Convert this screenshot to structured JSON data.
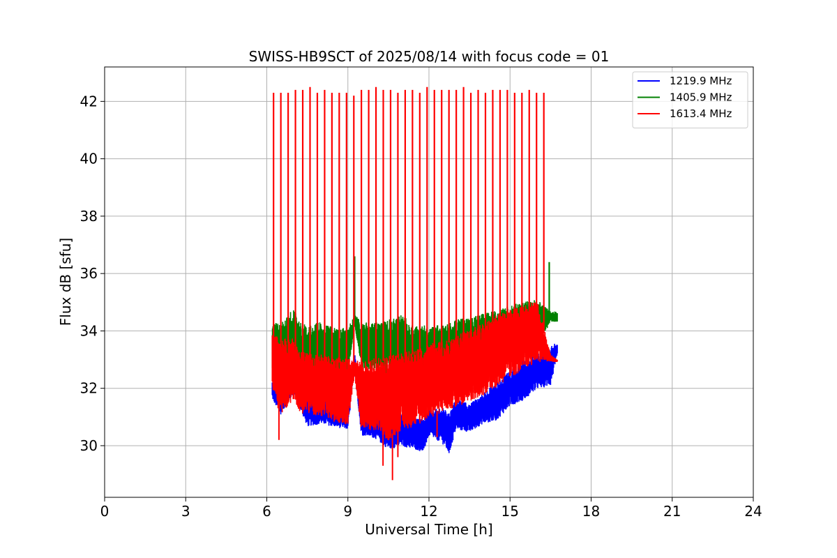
{
  "chart_data": {
    "type": "line",
    "title": "SWISS-HB9SCT of 2025/08/14 with focus code = 01",
    "xlabel": "Universal Time [h]",
    "ylabel": "Flux dB [sfu]",
    "xlim": [
      0,
      24
    ],
    "ylim": [
      28.2,
      43.2
    ],
    "xticks": [
      0,
      3,
      6,
      9,
      12,
      15,
      18,
      21,
      24
    ],
    "yticks": [
      30,
      32,
      34,
      36,
      38,
      40,
      42
    ],
    "grid": true,
    "legend_position": "top-right",
    "series": [
      {
        "name": "1219.9 MHz",
        "color": "#0000ff",
        "x": [
          6.2,
          6.5,
          7.0,
          7.25,
          7.5,
          8.0,
          8.5,
          9.0,
          9.25,
          9.5,
          10.0,
          10.5,
          11.0,
          11.5,
          11.8,
          12.0,
          12.5,
          12.75,
          13.0,
          13.5,
          14.0,
          14.5,
          15.0,
          15.5,
          16.0,
          16.5,
          16.75
        ],
        "low": [
          31.6,
          31.0,
          31.8,
          31.2,
          30.6,
          30.7,
          30.6,
          30.5,
          32.6,
          30.3,
          30.2,
          29.8,
          29.9,
          29.8,
          29.7,
          30.3,
          30.0,
          29.6,
          30.5,
          30.4,
          30.7,
          30.8,
          31.3,
          31.5,
          31.9,
          32.0,
          33.1
        ],
        "high": [
          32.3,
          32.1,
          32.5,
          32.0,
          31.8,
          31.8,
          31.6,
          31.6,
          33.3,
          31.5,
          31.3,
          31.2,
          31.3,
          31.0,
          31.0,
          31.3,
          31.4,
          31.2,
          31.7,
          31.5,
          31.9,
          32.3,
          32.7,
          33.1,
          33.3,
          33.6,
          33.6
        ]
      },
      {
        "name": "1405.9 MHz",
        "color": "#008000",
        "x": [
          6.2,
          6.5,
          7.0,
          7.25,
          7.5,
          8.0,
          8.5,
          9.0,
          9.25,
          9.5,
          10.0,
          10.5,
          11.0,
          11.5,
          12.0,
          12.5,
          13.0,
          13.5,
          14.0,
          14.5,
          15.0,
          15.5,
          16.0,
          16.5,
          16.75
        ],
        "low": [
          32.6,
          32.4,
          32.6,
          32.0,
          32.4,
          32.5,
          32.4,
          32.3,
          34.2,
          32.6,
          32.5,
          32.3,
          32.2,
          32.0,
          32.2,
          32.3,
          32.4,
          32.7,
          32.8,
          33.0,
          33.1,
          33.2,
          33.3,
          34.3,
          34.3
        ],
        "high": [
          34.4,
          34.4,
          34.9,
          34.4,
          34.3,
          34.4,
          34.2,
          34.2,
          34.6,
          34.4,
          34.4,
          34.5,
          34.7,
          34.3,
          34.3,
          34.3,
          34.5,
          34.6,
          34.7,
          34.8,
          35.0,
          35.1,
          35.2,
          34.7,
          34.7
        ],
        "spikes": [
          {
            "x": 9.25,
            "y": 36.6
          },
          {
            "x": 15.65,
            "y": 34.8
          },
          {
            "x": 16.45,
            "y": 36.4
          }
        ]
      },
      {
        "name": "1613.4 MHz",
        "color": "#ff0000",
        "x": [
          6.2,
          6.5,
          7.0,
          7.25,
          7.5,
          8.0,
          8.5,
          9.0,
          9.25,
          9.5,
          10.0,
          10.5,
          11.0,
          11.5,
          12.0,
          12.5,
          13.0,
          13.5,
          14.0,
          14.5,
          15.0,
          15.5,
          16.0,
          16.5,
          16.75
        ],
        "low": [
          31.8,
          30.9,
          31.5,
          31.0,
          31.0,
          30.9,
          30.7,
          30.6,
          32.4,
          30.4,
          30.3,
          30.0,
          30.4,
          30.5,
          30.8,
          31.0,
          31.2,
          31.4,
          31.6,
          31.9,
          32.2,
          32.5,
          32.8,
          32.9,
          32.9
        ],
        "high": [
          34.0,
          33.9,
          33.9,
          33.4,
          33.4,
          33.3,
          33.2,
          33.2,
          33.0,
          33.1,
          33.2,
          33.3,
          33.4,
          33.5,
          33.7,
          33.8,
          34.0,
          34.2,
          34.4,
          34.7,
          34.9,
          35.0,
          35.2,
          33.2,
          33.0
        ],
        "dips": [
          {
            "x": 6.45,
            "y": 30.2
          },
          {
            "x": 10.3,
            "y": 29.3
          },
          {
            "x": 10.65,
            "y": 28.8
          },
          {
            "x": 10.85,
            "y": 29.6
          },
          {
            "x": 12.3,
            "y": 30.3
          }
        ],
        "spikes": [
          {
            "x": 6.25,
            "y": 42.3
          },
          {
            "x": 6.52,
            "y": 42.3
          },
          {
            "x": 6.79,
            "y": 42.3
          },
          {
            "x": 7.06,
            "y": 42.4
          },
          {
            "x": 7.33,
            "y": 42.4
          },
          {
            "x": 7.6,
            "y": 42.5
          },
          {
            "x": 7.87,
            "y": 42.3
          },
          {
            "x": 8.14,
            "y": 42.4
          },
          {
            "x": 8.41,
            "y": 42.3
          },
          {
            "x": 8.68,
            "y": 42.3
          },
          {
            "x": 8.95,
            "y": 42.3
          },
          {
            "x": 9.22,
            "y": 42.2
          },
          {
            "x": 9.5,
            "y": 42.4
          },
          {
            "x": 9.77,
            "y": 42.4
          },
          {
            "x": 10.04,
            "y": 42.5
          },
          {
            "x": 10.31,
            "y": 42.4
          },
          {
            "x": 10.58,
            "y": 42.4
          },
          {
            "x": 10.85,
            "y": 42.3
          },
          {
            "x": 11.12,
            "y": 42.4
          },
          {
            "x": 11.39,
            "y": 42.4
          },
          {
            "x": 11.66,
            "y": 42.3
          },
          {
            "x": 11.93,
            "y": 42.5
          },
          {
            "x": 12.2,
            "y": 42.4
          },
          {
            "x": 12.47,
            "y": 42.4
          },
          {
            "x": 12.74,
            "y": 42.4
          },
          {
            "x": 13.01,
            "y": 42.4
          },
          {
            "x": 13.28,
            "y": 42.5
          },
          {
            "x": 13.55,
            "y": 42.3
          },
          {
            "x": 13.82,
            "y": 42.4
          },
          {
            "x": 14.09,
            "y": 42.3
          },
          {
            "x": 14.36,
            "y": 42.4
          },
          {
            "x": 14.63,
            "y": 42.4
          },
          {
            "x": 14.9,
            "y": 42.4
          },
          {
            "x": 15.17,
            "y": 42.3
          },
          {
            "x": 15.44,
            "y": 42.3
          },
          {
            "x": 15.71,
            "y": 42.4
          },
          {
            "x": 15.98,
            "y": 42.3
          },
          {
            "x": 16.25,
            "y": 42.3
          }
        ]
      }
    ]
  }
}
